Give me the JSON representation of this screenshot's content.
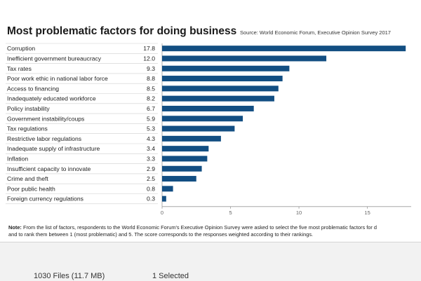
{
  "header": {
    "title": "Most problematic factors for doing business",
    "source": "Source: World Economic Forum, Executive Opinion Survey 2017"
  },
  "chart_data": {
    "type": "bar",
    "orientation": "horizontal",
    "title": "Most problematic factors for doing business",
    "categories": [
      "Corruption",
      "Inefficient government bureaucracy",
      "Tax rates",
      "Poor work ethic in national labor force",
      "Access to financing",
      "Inadequately educated workforce",
      "Policy instability",
      "Government instability/coups",
      "Tax regulations",
      "Restrictive labor regulations",
      "Inadequate supply of infrastructure",
      "Inflation",
      "Insufficient capacity to innovate",
      "Crime and theft",
      "Poor public health",
      "Foreign currency regulations"
    ],
    "values": [
      17.8,
      12.0,
      9.3,
      8.8,
      8.5,
      8.2,
      6.7,
      5.9,
      5.3,
      4.3,
      3.4,
      3.3,
      2.9,
      2.5,
      0.8,
      0.3
    ],
    "value_labels": [
      "17.8",
      "12.0",
      "9.3",
      "8.8",
      "8.5",
      "8.2",
      "6.7",
      "5.9",
      "5.3",
      "4.3",
      "3.4",
      "3.3",
      "2.9",
      "2.5",
      "0.8",
      "0.3"
    ],
    "xlim": [
      0,
      18.2
    ],
    "xticks": [
      0,
      5,
      10,
      15
    ],
    "xtick_labels": [
      "0",
      "5",
      "10",
      "15"
    ],
    "grid": false,
    "bar_color": "#124e82",
    "xlabel": "",
    "ylabel": ""
  },
  "note": {
    "label": "Note:",
    "line1": "From the list of factors, respondents to the World Economic Forum's Executive Opinion Survey were asked to select the five most problematic factors for d",
    "line2": "and to rank them between 1 (most problematic) and 5. The score corresponds to the responses weighted according to their rankings."
  },
  "statusbar": {
    "left": "1030 Files (11.7 MB)",
    "right": "1 Selected"
  }
}
